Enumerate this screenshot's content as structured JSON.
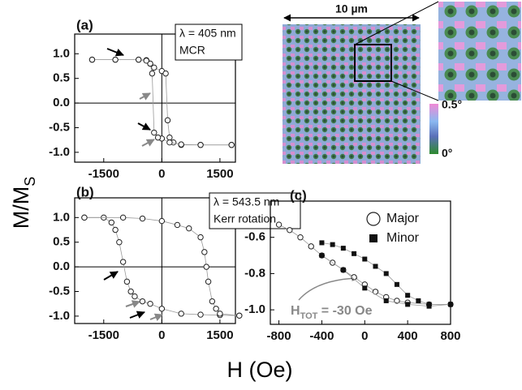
{
  "figure": {
    "y_label": "M/M",
    "y_label_sub": "S",
    "x_label": "H (Oe)",
    "image": {
      "scale_label": "10 µm",
      "colorbar_top": "0.5°",
      "colorbar_bottom": "0°"
    },
    "htot": {
      "main": "H",
      "sub": "TOT",
      "rest": " = -30 Oe"
    }
  },
  "chart_data": [
    {
      "type": "scatter",
      "panel_label": "(a)",
      "annotations": [
        "λ = 405 nm",
        "MCR"
      ],
      "zero_lines": true,
      "xlim": [
        -2250,
        1900
      ],
      "ylim": [
        -1.2,
        1.4
      ],
      "xticks": [
        -1500,
        0,
        1500
      ],
      "yticks": [
        {
          "value": 1,
          "label": "1.0"
        },
        {
          "value": 0.5,
          "label": "0.5"
        },
        {
          "value": 0,
          "label": "0.0"
        },
        {
          "value": -0.5,
          "label": "-0.5"
        },
        {
          "value": -1,
          "label": "-1.0"
        }
      ],
      "series": [
        {
          "color": "#222",
          "marker": "open-circle",
          "x": [
            -1800,
            -1200,
            -600,
            -400,
            -300,
            -200,
            0,
            100,
            150,
            200,
            300,
            500,
            1000,
            1800
          ],
          "values": [
            0.88,
            0.88,
            0.88,
            0.87,
            0.8,
            0.72,
            0.65,
            0.6,
            -0.35,
            -0.7,
            -0.8,
            -0.85,
            -0.85,
            -0.85
          ]
        },
        {
          "color": "#222",
          "marker": "open-circle",
          "x": [
            1800,
            1000,
            500,
            200,
            0,
            -100,
            -200,
            -250,
            -300,
            -400,
            -600,
            -1200,
            -1800
          ],
          "values": [
            -0.85,
            -0.85,
            -0.84,
            -0.8,
            -0.72,
            -0.7,
            -0.6,
            0.6,
            0.8,
            0.86,
            0.88,
            0.88,
            0.88
          ]
        }
      ]
    },
    {
      "type": "scatter",
      "panel_label": "(b)",
      "annotations": [
        "λ = 543.5 nm",
        "Kerr rotation"
      ],
      "zero_lines": true,
      "xlim": [
        -2250,
        1900
      ],
      "ylim": [
        -1.15,
        1.4
      ],
      "xticks": [
        -1500,
        0,
        1500
      ],
      "yticks": [
        {
          "value": 1,
          "label": "1.0"
        },
        {
          "value": 0.5,
          "label": "0.5"
        },
        {
          "value": 0,
          "label": "0.0"
        },
        {
          "value": -0.5,
          "label": "-0.5"
        },
        {
          "value": -1,
          "label": "-1.0"
        }
      ],
      "series": [
        {
          "color": "#222",
          "marker": "open-circle",
          "x": [
            -2000,
            -1500,
            -1300,
            -1200,
            -1100,
            -1000,
            -900,
            -800,
            -700,
            -500,
            -300,
            0,
            500,
            1000,
            1500,
            2000
          ],
          "values": [
            1.0,
            1.0,
            0.9,
            0.75,
            0.5,
            0.1,
            -0.3,
            -0.5,
            -0.6,
            -0.7,
            -0.75,
            -0.85,
            -0.95,
            -0.97,
            -0.98,
            -0.99
          ]
        },
        {
          "color": "#222",
          "marker": "open-circle",
          "x": [
            2000,
            1500,
            1400,
            1300,
            1200,
            1150,
            1100,
            1000,
            700,
            400,
            0,
            -500,
            -1000,
            -2000
          ],
          "values": [
            -0.99,
            -0.95,
            -0.85,
            -0.7,
            -0.3,
            0.0,
            0.3,
            0.6,
            0.78,
            0.85,
            0.93,
            0.98,
            1.0,
            1.0
          ]
        }
      ]
    },
    {
      "type": "scatter",
      "panel_label": "(c)",
      "zero_lines": false,
      "legend": "upper right",
      "xlim": [
        -880,
        800
      ],
      "ylim": [
        -1.08,
        -0.4
      ],
      "xticks": [
        -800,
        -400,
        0,
        400,
        800
      ],
      "yticks": [
        {
          "value": -0.6,
          "label": "-0.6"
        },
        {
          "value": -0.8,
          "label": "-0.8"
        },
        {
          "value": -1,
          "label": "-1.0"
        }
      ],
      "series": [
        {
          "name": "Major",
          "color": "#222",
          "marker": "open-circle",
          "x": [
            -800,
            -700,
            -600,
            -500,
            -400,
            -300,
            -200,
            -100,
            0,
            100,
            200,
            300,
            400,
            600,
            800
          ],
          "values": [
            -0.53,
            -0.56,
            -0.6,
            -0.65,
            -0.7,
            -0.74,
            -0.78,
            -0.82,
            -0.86,
            -0.9,
            -0.93,
            -0.95,
            -0.96,
            -0.97,
            -0.97
          ]
        },
        {
          "name": "Minor",
          "color": "#111",
          "marker": "square",
          "x": [
            -400,
            -300,
            -200,
            -100,
            0,
            100,
            200,
            300,
            400,
            500,
            600,
            800,
            600,
            400,
            200,
            0,
            -200,
            -400
          ],
          "values": [
            -0.63,
            -0.64,
            -0.66,
            -0.69,
            -0.72,
            -0.76,
            -0.8,
            -0.86,
            -0.92,
            -0.95,
            -0.97,
            -0.97,
            -0.98,
            -0.97,
            -0.95,
            -0.88,
            -0.78,
            -0.7
          ]
        }
      ]
    }
  ]
}
